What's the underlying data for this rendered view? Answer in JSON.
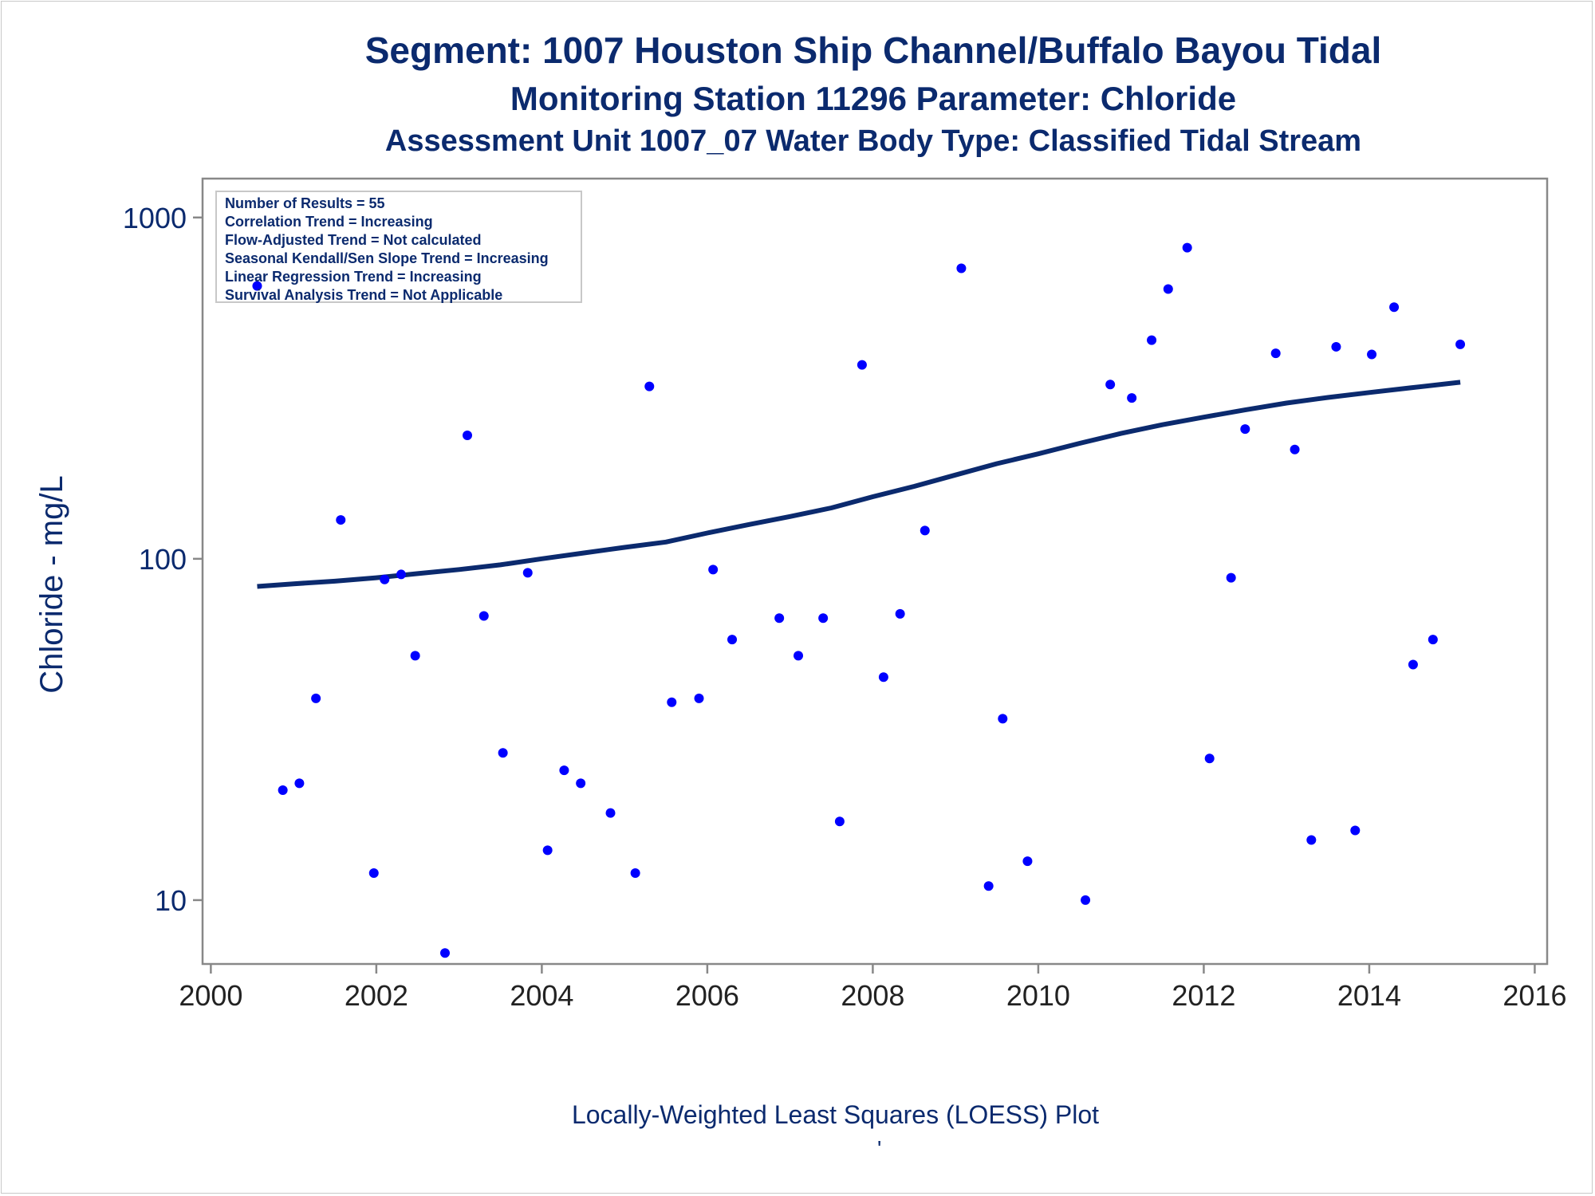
{
  "titles": {
    "line1": "Segment: 1007  Houston Ship Channel/Buffalo Bayou Tidal",
    "line2": "Monitoring Station 11296 Parameter: Chloride",
    "line3": "Assessment Unit 1007_07   Water Body Type: Classified Tidal Stream"
  },
  "stats": [
    "Number of Results = 55",
    "Correlation Trend = Increasing",
    "Flow-Adjusted Trend = Not calculated",
    "Seasonal Kendall/Sen Slope Trend = Increasing",
    "Linear Regression Trend = Increasing",
    "Survival Analysis Trend = Not Applicable"
  ],
  "footnote": "Locally-Weighted Least Squares (LOESS) Plot",
  "footnote_mark": "'",
  "colors": {
    "text": "#0b2a6e",
    "points": "#0000ff",
    "loess": "#0b2a6e",
    "axis": "#888888"
  },
  "chart_data": {
    "type": "scatter",
    "title": "Segment: 1007  Houston Ship Channel/Buffalo Bayou Tidal",
    "ylabel": "Chloride - mg/L",
    "xlabel": "",
    "yscale": "log",
    "ylim": [
      6.5,
      1300
    ],
    "xlim": [
      1999.9,
      2016.15
    ],
    "xticks": [
      2000,
      2002,
      2004,
      2006,
      2008,
      2010,
      2012,
      2014,
      2016
    ],
    "xtick_labels": [
      "2000",
      "2002",
      "2004",
      "2006",
      "2008",
      "2010",
      "2012",
      "2014",
      "2016"
    ],
    "yticks": [
      10,
      100,
      1000
    ],
    "ytick_labels": [
      "10",
      "100",
      "1000"
    ],
    "grid": false,
    "series": [
      {
        "type": "scatter",
        "x": [
          2000.56,
          2000.87,
          2001.07,
          2001.27,
          2001.57,
          2001.97,
          2002.1,
          2002.3,
          2002.47,
          2002.83,
          2003.1,
          2003.3,
          2003.53,
          2003.83,
          2004.07,
          2004.27,
          2004.47,
          2004.83,
          2005.13,
          2005.3,
          2005.57,
          2005.9,
          2006.07,
          2006.3,
          2006.87,
          2007.1,
          2007.4,
          2007.6,
          2007.87,
          2008.13,
          2008.33,
          2008.63,
          2009.07,
          2009.4,
          2009.57,
          2009.87,
          2010.57,
          2010.87,
          2011.13,
          2011.37,
          2011.57,
          2011.8,
          2012.07,
          2012.33,
          2012.5,
          2012.87,
          2013.1,
          2013.3,
          2013.6,
          2013.83,
          2014.03,
          2014.3,
          2014.53,
          2014.77,
          2015.1
        ],
        "y": [
          630,
          21,
          22,
          39,
          130,
          12,
          87,
          90,
          52,
          7,
          230,
          68,
          27,
          91,
          14,
          24,
          22,
          18,
          12,
          320,
          38,
          39,
          93,
          58,
          67,
          52,
          67,
          17,
          370,
          45,
          69,
          121,
          710,
          11,
          34,
          13,
          10,
          324,
          296,
          437,
          617,
          816,
          26,
          88,
          240,
          400,
          209,
          15,
          418,
          16,
          397,
          546,
          49,
          58,
          425
        ]
      },
      {
        "type": "line",
        "x": [
          2000.56,
          2001.0,
          2001.5,
          2002.0,
          2002.5,
          2003.0,
          2003.5,
          2004.0,
          2004.5,
          2005.0,
          2005.5,
          2006.0,
          2006.5,
          2007.0,
          2007.5,
          2008.0,
          2008.5,
          2009.0,
          2009.5,
          2010.0,
          2010.5,
          2011.0,
          2011.5,
          2012.0,
          2012.5,
          2013.0,
          2013.5,
          2014.0,
          2014.5,
          2015.1
        ],
        "y": [
          83,
          84.5,
          86,
          88,
          90.5,
          93,
          96,
          100,
          104,
          108,
          112,
          119,
          126,
          133,
          141,
          152,
          163,
          176,
          190,
          203,
          218,
          233,
          247,
          260,
          273,
          286,
          297,
          307,
          317,
          329
        ]
      }
    ]
  }
}
